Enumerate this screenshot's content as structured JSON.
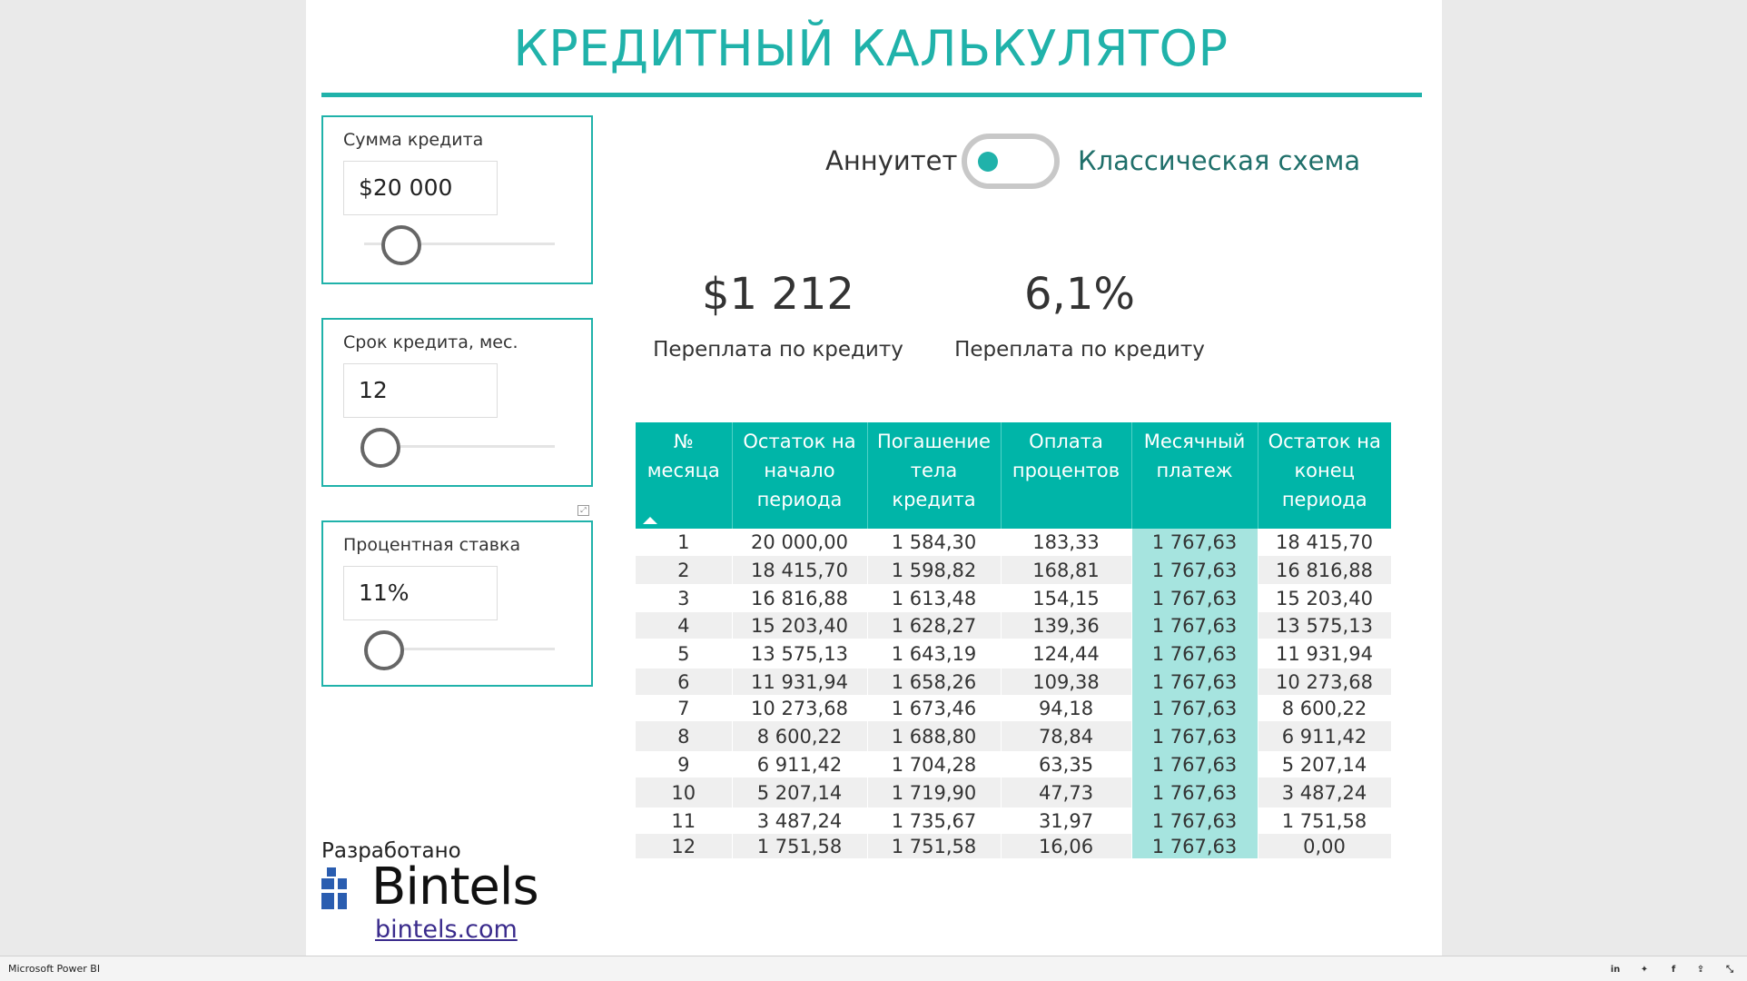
{
  "title": "КРЕДИТНЫЙ КАЛЬКУЛЯТОР",
  "slicers": [
    {
      "label": "Сумма кредита",
      "value": "$20 000"
    },
    {
      "label": "Срок кредита, мес.",
      "value": "12"
    },
    {
      "label": "Процентная ставка",
      "value": "11%"
    }
  ],
  "toggle": {
    "left_label": "Аннуитет",
    "right_label": "Классическая схема",
    "state": "Аннуитет",
    "accent": "#20b2aa"
  },
  "kpis": [
    {
      "value": "$1 212",
      "label": "Переплата по кредиту"
    },
    {
      "value": "6,1%",
      "label": "Переплата по кредиту"
    }
  ],
  "table": {
    "headers": [
      [
        "№",
        "месяца"
      ],
      [
        "Остаток на",
        "начало",
        "периода"
      ],
      [
        "Погашение",
        "тела",
        "кредита"
      ],
      [
        "Оплата",
        "процентов"
      ],
      [
        "Месячный",
        "платеж"
      ],
      [
        "Остаток на",
        "конец",
        "периода"
      ]
    ],
    "rows": [
      [
        "1",
        "20 000,00",
        "1 584,30",
        "183,33",
        "1 767,63",
        "18 415,70"
      ],
      [
        "2",
        "18 415,70",
        "1 598,82",
        "168,81",
        "1 767,63",
        "16 816,88"
      ],
      [
        "3",
        "16 816,88",
        "1 613,48",
        "154,15",
        "1 767,63",
        "15 203,40"
      ],
      [
        "4",
        "15 203,40",
        "1 628,27",
        "139,36",
        "1 767,63",
        "13 575,13"
      ],
      [
        "5",
        "13 575,13",
        "1 643,19",
        "124,44",
        "1 767,63",
        "11 931,94"
      ],
      [
        "6",
        "11 931,94",
        "1 658,26",
        "109,38",
        "1 767,63",
        "10 273,68"
      ],
      [
        "7",
        "10 273,68",
        "1 673,46",
        "94,18",
        "1 767,63",
        "8 600,22"
      ],
      [
        "8",
        "8 600,22",
        "1 688,80",
        "78,84",
        "1 767,63",
        "6 911,42"
      ],
      [
        "9",
        "6 911,42",
        "1 704,28",
        "63,35",
        "1 767,63",
        "5 207,14"
      ],
      [
        "10",
        "5 207,14",
        "1 719,90",
        "47,73",
        "1 767,63",
        "3 487,24"
      ],
      [
        "11",
        "3 487,24",
        "1 735,67",
        "31,97",
        "1 767,63",
        "1 751,58"
      ],
      [
        "12",
        "1 751,58",
        "1 751,58",
        "16,06",
        "1 767,63",
        "0,00"
      ]
    ]
  },
  "footer": {
    "developed_label": "Разработано",
    "logo_text": "Bintels",
    "link": "bintels.com"
  },
  "statusbar": {
    "app_name": "Microsoft Power BI",
    "icons": [
      "linkedin-icon",
      "twitter-icon",
      "facebook-icon",
      "share-icon",
      "fullscreen-icon"
    ]
  },
  "colors": {
    "accent": "#20b2aa",
    "header_bg": "#00b5a8",
    "payment_col": "#a6e4df",
    "logo_blue": "#2a5db0"
  }
}
